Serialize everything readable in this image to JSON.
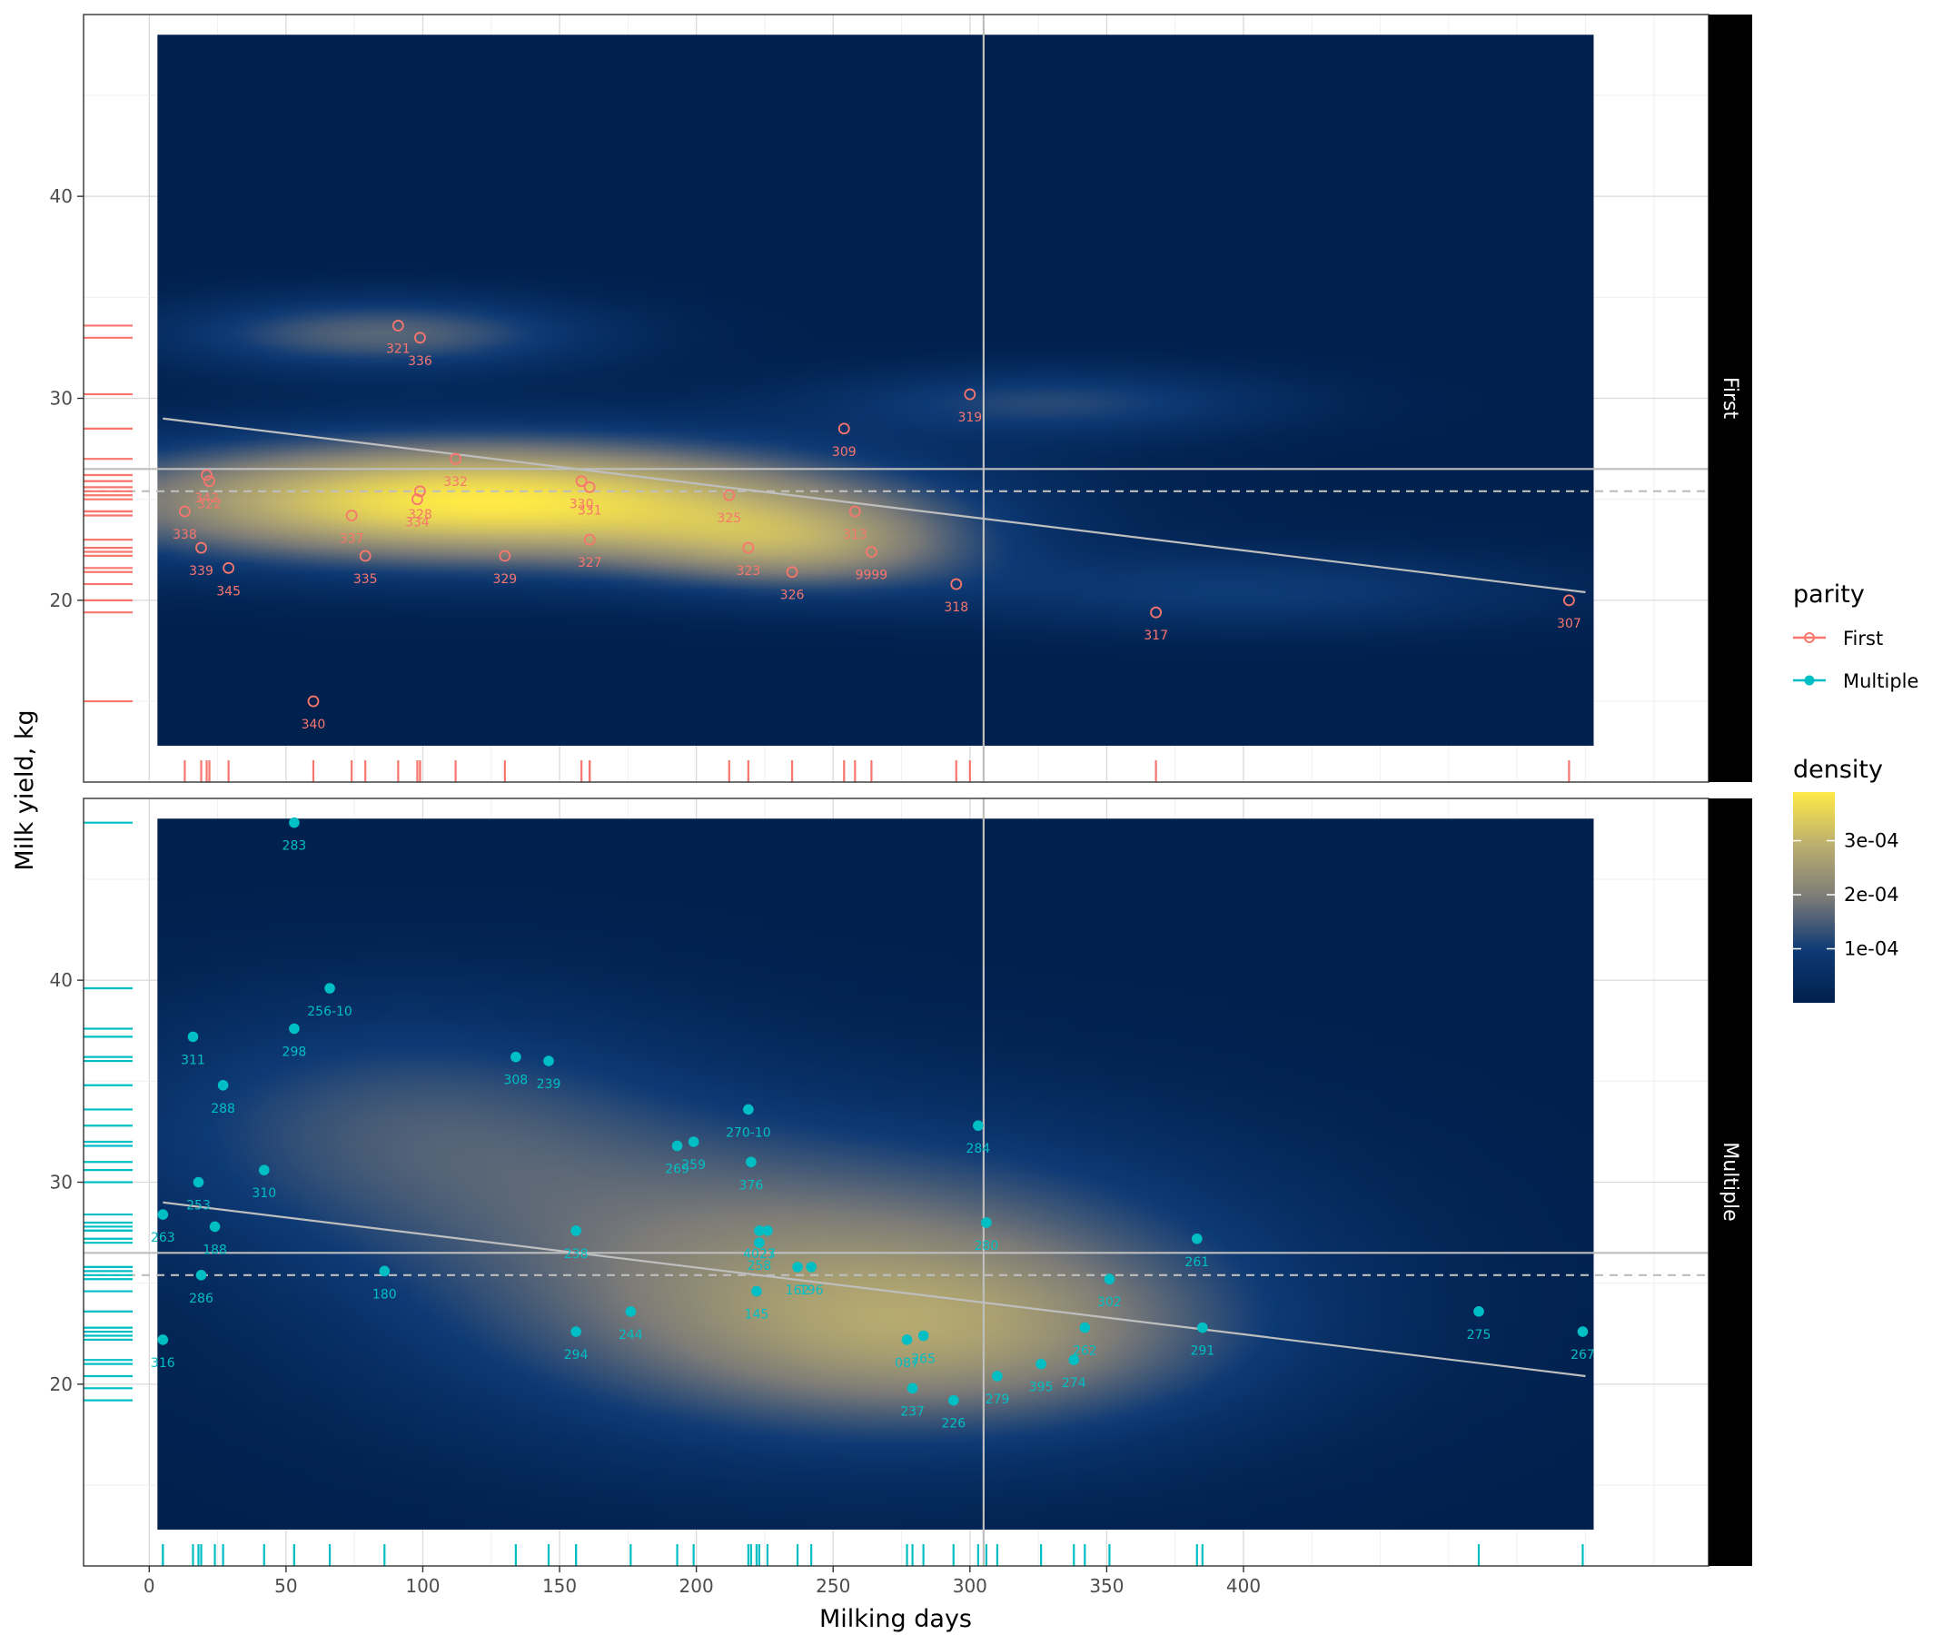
{
  "chart_data": {
    "type": "scatter",
    "xlabel": "Milking days",
    "ylabel": "Milk yield, kg",
    "xlim": [
      -24,
      570
    ],
    "xticks": [
      0,
      50,
      100,
      150,
      200,
      250,
      300,
      350,
      400
    ],
    "yticks": [
      20,
      30,
      40
    ],
    "grid": true,
    "legend_position": "right",
    "reference_lines": {
      "vline_x": 305,
      "hline_solid_y": 26.5,
      "hline_dashed_y": 25.4,
      "trend": {
        "x": [
          5,
          525
        ],
        "y": [
          29.0,
          20.4
        ]
      }
    },
    "legend": {
      "parity_title": "parity",
      "parity_items": [
        "First",
        "Multiple"
      ],
      "density_title": "density",
      "density_ticks": [
        "1e-04",
        "2e-04",
        "3e-04"
      ]
    },
    "colors": {
      "first": "#F8766D",
      "multiple": "#00BFC4",
      "density_low": "#00204D",
      "density_mid": "#7C7B78",
      "density_high": "#FFEA46",
      "reference": "#BEBEBE"
    },
    "panels": [
      {
        "strip": "First",
        "ylim": [
          11.0,
          49.0
        ],
        "density_blobs": [
          {
            "cx": 120,
            "cy": 24.9,
            "sx": 100,
            "sy": 2.2,
            "w": 1.0
          },
          {
            "cx": 240,
            "cy": 22.6,
            "sx": 45,
            "sy": 1.6,
            "w": 0.45
          },
          {
            "cx": 85,
            "cy": 33.2,
            "sx": 55,
            "sy": 1.3,
            "w": 0.42
          },
          {
            "cx": 330,
            "cy": 29.8,
            "sx": 60,
            "sy": 1.2,
            "w": 0.3
          },
          {
            "cx": 400,
            "cy": 20.5,
            "sx": 80,
            "sy": 1.4,
            "w": 0.25
          }
        ],
        "points": [
          {
            "id": "321",
            "x": 91,
            "y": 33.6
          },
          {
            "id": "336",
            "x": 99,
            "y": 33.0
          },
          {
            "id": "319",
            "x": 300,
            "y": 30.2
          },
          {
            "id": "309",
            "x": 254,
            "y": 28.5
          },
          {
            "id": "332",
            "x": 112,
            "y": 27.0
          },
          {
            "id": "342",
            "x": 21,
            "y": 26.2
          },
          {
            "id": "322",
            "x": 22,
            "y": 25.9
          },
          {
            "id": "330",
            "x": 158,
            "y": 25.9
          },
          {
            "id": "331",
            "x": 161,
            "y": 25.6
          },
          {
            "id": "328",
            "x": 99,
            "y": 25.4
          },
          {
            "id": "325",
            "x": 212,
            "y": 25.2
          },
          {
            "id": "334",
            "x": 98,
            "y": 25.0
          },
          {
            "id": "338",
            "x": 13,
            "y": 24.4
          },
          {
            "id": "313",
            "x": 258,
            "y": 24.4
          },
          {
            "id": "337",
            "x": 74,
            "y": 24.2
          },
          {
            "id": "327",
            "x": 161,
            "y": 23.0
          },
          {
            "id": "339",
            "x": 19,
            "y": 22.6
          },
          {
            "id": "323",
            "x": 219,
            "y": 22.6
          },
          {
            "id": "9999",
            "x": 264,
            "y": 22.4
          },
          {
            "id": "335",
            "x": 79,
            "y": 22.2
          },
          {
            "id": "329",
            "x": 130,
            "y": 22.2
          },
          {
            "id": "345",
            "x": 29,
            "y": 21.6
          },
          {
            "id": "326",
            "x": 235,
            "y": 21.4
          },
          {
            "id": "318",
            "x": 295,
            "y": 20.8
          },
          {
            "id": "307",
            "x": 519,
            "y": 20.0
          },
          {
            "id": "317",
            "x": 368,
            "y": 19.4
          },
          {
            "id": "340",
            "x": 60,
            "y": 15.0
          }
        ]
      },
      {
        "strip": "Multiple",
        "ylim": [
          11.0,
          49.0
        ],
        "density_blobs": [
          {
            "cx": 250,
            "cy": 25.0,
            "sx": 110,
            "sy": 5.5,
            "w": 0.55
          },
          {
            "cx": 90,
            "cy": 33.0,
            "sx": 80,
            "sy": 4.5,
            "w": 0.32
          },
          {
            "cx": 300,
            "cy": 22.0,
            "sx": 70,
            "sy": 3.0,
            "w": 0.25
          }
        ],
        "points": [
          {
            "id": "283",
            "x": 53,
            "y": 47.8
          },
          {
            "id": "256-10",
            "x": 66,
            "y": 39.6
          },
          {
            "id": "298",
            "x": 53,
            "y": 37.6
          },
          {
            "id": "311",
            "x": 16,
            "y": 37.2
          },
          {
            "id": "308",
            "x": 134,
            "y": 36.2
          },
          {
            "id": "239",
            "x": 146,
            "y": 36.0
          },
          {
            "id": "288",
            "x": 27,
            "y": 34.8
          },
          {
            "id": "270-10",
            "x": 219,
            "y": 33.6
          },
          {
            "id": "284",
            "x": 303,
            "y": 32.8
          },
          {
            "id": "259",
            "x": 199,
            "y": 32.0
          },
          {
            "id": "269",
            "x": 193,
            "y": 31.8
          },
          {
            "id": "376",
            "x": 220,
            "y": 31.0
          },
          {
            "id": "310",
            "x": 42,
            "y": 30.6
          },
          {
            "id": "253",
            "x": 18,
            "y": 30.0
          },
          {
            "id": "263",
            "x": 5,
            "y": 28.4
          },
          {
            "id": "280",
            "x": 306,
            "y": 28.0
          },
          {
            "id": "188",
            "x": 24,
            "y": 27.8
          },
          {
            "id": "238",
            "x": 156,
            "y": 27.6
          },
          {
            "id": "4023",
            "x": 223,
            "y": 27.6
          },
          {
            "id": "27",
            "x": 226,
            "y": 27.6
          },
          {
            "id": "261",
            "x": 383,
            "y": 27.2
          },
          {
            "id": "258",
            "x": 223,
            "y": 27.0
          },
          {
            "id": "162",
            "x": 237,
            "y": 25.8
          },
          {
            "id": "196",
            "x": 242,
            "y": 25.8
          },
          {
            "id": "180",
            "x": 86,
            "y": 25.6
          },
          {
            "id": "286",
            "x": 19,
            "y": 25.4
          },
          {
            "id": "302",
            "x": 351,
            "y": 25.2
          },
          {
            "id": "145",
            "x": 222,
            "y": 24.6
          },
          {
            "id": "244",
            "x": 176,
            "y": 23.6
          },
          {
            "id": "275",
            "x": 486,
            "y": 23.6
          },
          {
            "id": "262",
            "x": 342,
            "y": 22.8
          },
          {
            "id": "291",
            "x": 385,
            "y": 22.8
          },
          {
            "id": "294",
            "x": 156,
            "y": 22.6
          },
          {
            "id": "267",
            "x": 524,
            "y": 22.6
          },
          {
            "id": "265",
            "x": 283,
            "y": 22.4
          },
          {
            "id": "087",
            "x": 277,
            "y": 22.2
          },
          {
            "id": "316",
            "x": 5,
            "y": 22.2
          },
          {
            "id": "274",
            "x": 338,
            "y": 21.2
          },
          {
            "id": "395",
            "x": 326,
            "y": 21.0
          },
          {
            "id": "279",
            "x": 310,
            "y": 20.4
          },
          {
            "id": "237",
            "x": 279,
            "y": 19.8
          },
          {
            "id": "226",
            "x": 294,
            "y": 19.2
          }
        ]
      }
    ]
  }
}
